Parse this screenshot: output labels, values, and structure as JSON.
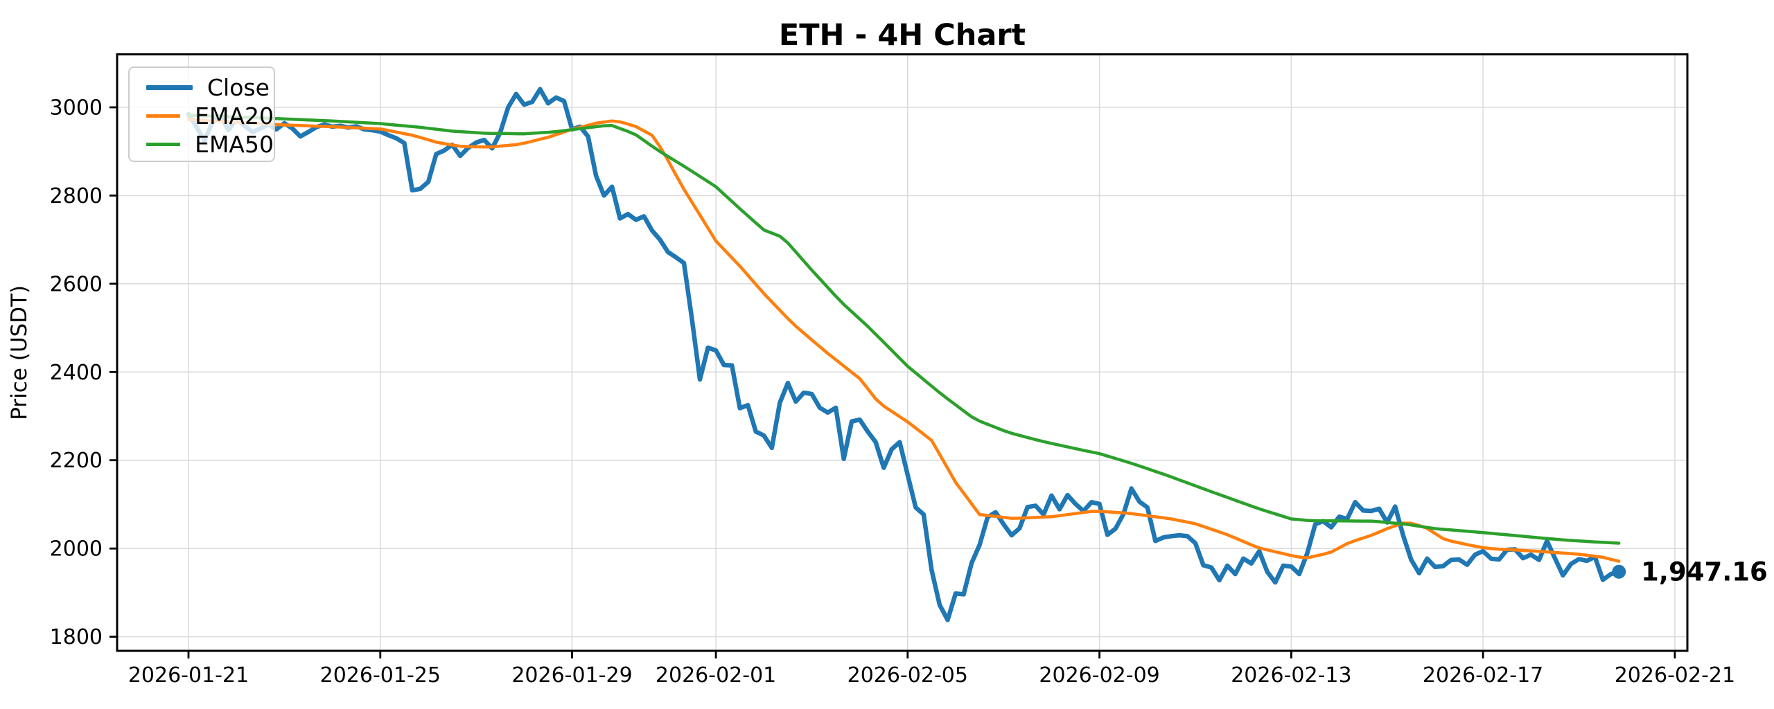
{
  "title": "ETH - 4H Chart",
  "ylabel": "Price (USDT)",
  "annotation": {
    "text": "1,947.16"
  },
  "legend": {
    "items": [
      {
        "label": "Close",
        "series_index": 0
      },
      {
        "label": "EMA20",
        "series_index": 1
      },
      {
        "label": "EMA50",
        "series_index": 2
      }
    ]
  },
  "chart_data": {
    "type": "line",
    "title": "ETH - 4H Chart",
    "ylabel": "Price (USDT)",
    "xlabel": "",
    "grid": true,
    "legend_position": "upper-left",
    "x_start_date": "2026-01-21 00:00",
    "x_interval_hours": 4,
    "x_tick_labels": [
      "2026-01-21",
      "2026-01-25",
      "2026-01-29",
      "2026-02-01",
      "2026-02-05",
      "2026-02-09",
      "2026-02-13",
      "2026-02-17",
      "2026-02-21"
    ],
    "x_tick_day_offsets": [
      0,
      4,
      8,
      11,
      15,
      19,
      23,
      27,
      31
    ],
    "y_tick_labels": [
      "1800",
      "2000",
      "2200",
      "2400",
      "2600",
      "2800",
      "3000"
    ],
    "y_ticks": [
      1800,
      2000,
      2200,
      2400,
      2600,
      2800,
      3000
    ],
    "ylim": [
      1768,
      3120
    ],
    "series": [
      {
        "name": "Close",
        "color": "#1f77b4",
        "line_width": 6.5,
        "values": [
          2984,
          2956,
          2925,
          2966,
          2981,
          2948,
          2974,
          2958,
          2944,
          2952,
          2961,
          2950,
          2964,
          2952,
          2934,
          2944,
          2955,
          2961,
          2956,
          2958,
          2954,
          2957,
          2950,
          2948,
          2945,
          2937,
          2930,
          2919,
          2812,
          2815,
          2831,
          2894,
          2902,
          2915,
          2890,
          2908,
          2920,
          2926,
          2907,
          2942,
          3000,
          3030,
          3006,
          3012,
          3041,
          3009,
          3022,
          3014,
          2950,
          2956,
          2934,
          2845,
          2800,
          2820,
          2748,
          2758,
          2745,
          2753,
          2721,
          2700,
          2672,
          2660,
          2647,
          2520,
          2383,
          2455,
          2449,
          2416,
          2415,
          2318,
          2325,
          2265,
          2256,
          2228,
          2330,
          2375,
          2333,
          2353,
          2350,
          2319,
          2308,
          2319,
          2203,
          2288,
          2292,
          2265,
          2241,
          2183,
          2225,
          2241,
          2167,
          2093,
          2077,
          1951,
          1872,
          1838,
          1898,
          1896,
          1967,
          2008,
          2071,
          2082,
          2055,
          2030,
          2046,
          2094,
          2097,
          2077,
          2120,
          2089,
          2121,
          2101,
          2085,
          2105,
          2101,
          2031,
          2045,
          2078,
          2136,
          2106,
          2093,
          2017,
          2025,
          2028,
          2030,
          2028,
          2012,
          1962,
          1957,
          1928,
          1961,
          1942,
          1977,
          1966,
          1994,
          1947,
          1923,
          1961,
          1959,
          1942,
          1989,
          2055,
          2062,
          2048,
          2072,
          2067,
          2105,
          2086,
          2085,
          2090,
          2059,
          2095,
          2030,
          1975,
          1944,
          1977,
          1958,
          1960,
          1974,
          1975,
          1963,
          1986,
          1994,
          1977,
          1975,
          1997,
          1998,
          1978,
          1986,
          1974,
          2017,
          1978,
          1939,
          1965,
          1976,
          1972,
          1981,
          1929,
          1942,
          1947.16
        ]
      },
      {
        "name": "EMA20",
        "color": "#ff7f0e",
        "line_width": 4.5,
        "type": "ema",
        "period": 20,
        "keyframes": [
          [
            0,
            2972
          ],
          [
            1,
            2966
          ],
          [
            2,
            2960
          ],
          [
            3,
            2956
          ],
          [
            4,
            2951
          ],
          [
            4.7,
            2936
          ],
          [
            5.2,
            2920
          ],
          [
            5.7,
            2911
          ],
          [
            6.3,
            2910
          ],
          [
            6.9,
            2916
          ],
          [
            7.5,
            2932
          ],
          [
            8,
            2950
          ],
          [
            8.5,
            2964
          ],
          [
            8.9,
            2970
          ],
          [
            9.3,
            2958
          ],
          [
            9.7,
            2935
          ],
          [
            10,
            2880
          ],
          [
            10.3,
            2820
          ],
          [
            10.7,
            2750
          ],
          [
            11,
            2697
          ],
          [
            11.5,
            2640
          ],
          [
            12,
            2578
          ],
          [
            12.6,
            2510
          ],
          [
            13.3,
            2445
          ],
          [
            14,
            2385
          ],
          [
            14.4,
            2330
          ],
          [
            15,
            2287
          ],
          [
            15.5,
            2245
          ],
          [
            16,
            2150
          ],
          [
            16.5,
            2077
          ],
          [
            17.2,
            2068
          ],
          [
            18,
            2072
          ],
          [
            18.9,
            2085
          ],
          [
            19.6,
            2080
          ],
          [
            20.5,
            2067
          ],
          [
            21,
            2056
          ],
          [
            21.7,
            2030
          ],
          [
            22.3,
            2002
          ],
          [
            23,
            1984
          ],
          [
            23.3,
            1978
          ],
          [
            23.8,
            1990
          ],
          [
            24.2,
            2013
          ],
          [
            24.7,
            2031
          ],
          [
            25,
            2045
          ],
          [
            25.4,
            2060
          ],
          [
            25.8,
            2048
          ],
          [
            26.2,
            2020
          ],
          [
            26.7,
            2008
          ],
          [
            27.1,
            2000
          ],
          [
            28.1,
            1994
          ],
          [
            29,
            1987
          ],
          [
            29.5,
            1980
          ],
          [
            29.833,
            1971
          ]
        ]
      },
      {
        "name": "EMA50",
        "color": "#2ca02c",
        "line_width": 4.5,
        "type": "ema",
        "period": 50,
        "keyframes": [
          [
            0,
            2982
          ],
          [
            1.5,
            2976
          ],
          [
            3,
            2969
          ],
          [
            4,
            2963
          ],
          [
            4.8,
            2955
          ],
          [
            5.5,
            2946
          ],
          [
            6.2,
            2941
          ],
          [
            7,
            2940
          ],
          [
            7.6,
            2944
          ],
          [
            8.2,
            2952
          ],
          [
            8.8,
            2960
          ],
          [
            9.3,
            2940
          ],
          [
            9.8,
            2902
          ],
          [
            10.4,
            2862
          ],
          [
            11,
            2820
          ],
          [
            11.5,
            2770
          ],
          [
            12,
            2722
          ],
          [
            12.4,
            2705
          ],
          [
            13,
            2631
          ],
          [
            13.6,
            2560
          ],
          [
            14.2,
            2500
          ],
          [
            15,
            2413
          ],
          [
            15.7,
            2350
          ],
          [
            16.4,
            2293
          ],
          [
            17.1,
            2263
          ],
          [
            17.8,
            2243
          ],
          [
            18.6,
            2224
          ],
          [
            19,
            2215
          ],
          [
            19.7,
            2192
          ],
          [
            20.4,
            2166
          ],
          [
            21.3,
            2130
          ],
          [
            22.3,
            2091
          ],
          [
            23,
            2067
          ],
          [
            23.4,
            2063
          ],
          [
            24.7,
            2062
          ],
          [
            25.4,
            2055
          ],
          [
            26,
            2045
          ],
          [
            27,
            2036
          ],
          [
            27.8,
            2028
          ],
          [
            28.6,
            2020
          ],
          [
            29.3,
            2015
          ],
          [
            29.833,
            2012
          ]
        ]
      }
    ],
    "end_marker": {
      "series": "Close",
      "value": 1947.16,
      "label": "1,947.16"
    }
  }
}
